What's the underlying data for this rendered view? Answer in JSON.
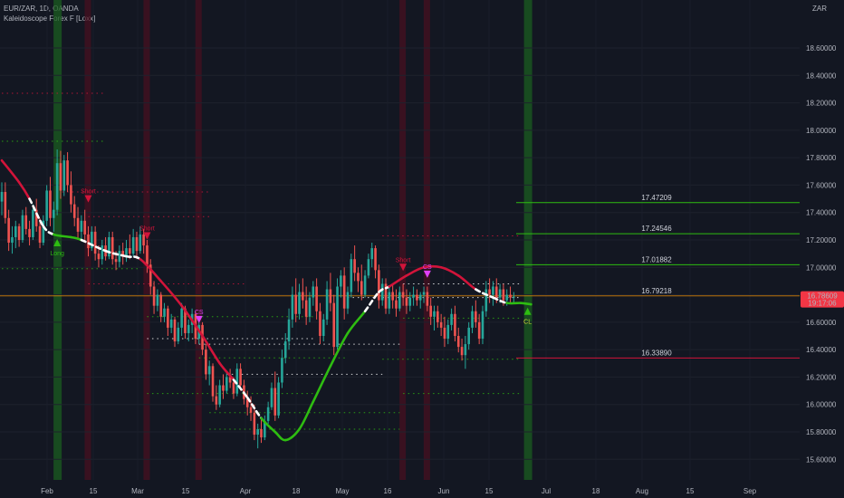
{
  "header": {
    "symbol_line": "EUR/ZAR, 1D, OANDA",
    "indicator_line": "Kaleidoscope Forex F [Loxx]"
  },
  "axis": {
    "currency": "ZAR"
  },
  "price_badge": {
    "price": "16.78609",
    "countdown": "19:17:06",
    "color": "#f23645"
  },
  "colors": {
    "background": "#131722",
    "up_candle": "#26a69a",
    "down_candle": "#ef5350",
    "trend_up": "#2ebd11",
    "trend_down": "#d2143a",
    "trend_neutral": "#ffffff",
    "long_band": "#1b5e20",
    "short_band": "#4a1020",
    "level_green": "#2ebd11",
    "level_red": "#d2143a",
    "level_orange": "#ff9800"
  },
  "chart_data": {
    "type": "candlestick",
    "title": "EUR/ZAR, 1D, OANDA",
    "indicator": "Kaleidoscope Forex F [Loxx]",
    "ylabel": "ZAR",
    "ylim": [
      15.45,
      18.95
    ],
    "y_ticks": [
      "18.60000",
      "18.40000",
      "18.20000",
      "18.00000",
      "17.80000",
      "17.60000",
      "17.40000",
      "17.20000",
      "17.00000",
      "16.80000",
      "16.60000",
      "16.40000",
      "16.20000",
      "16.00000",
      "15.80000",
      "15.60000"
    ],
    "x_ticks": [
      "Feb",
      "15",
      "Mar",
      "15",
      "Apr",
      "18",
      "May",
      "16",
      "Jun",
      "15",
      "Jul",
      "18",
      "Aug",
      "15",
      "Sep"
    ],
    "levels": [
      {
        "value": 17.47209,
        "label": "17.47209",
        "color": "green"
      },
      {
        "value": 17.24546,
        "label": "17.24546",
        "color": "green"
      },
      {
        "value": 17.01882,
        "label": "17.01882",
        "color": "green"
      },
      {
        "value": 16.79218,
        "label": "16.79218",
        "color": "orange"
      },
      {
        "value": 16.3389,
        "label": "16.33890",
        "color": "red"
      }
    ],
    "signals": [
      {
        "label": "Long",
        "type": "long",
        "bar": 16,
        "price": 17.18
      },
      {
        "label": "Short",
        "type": "short",
        "bar": 25,
        "price": 17.5
      },
      {
        "label": "Short",
        "type": "short",
        "bar": 42,
        "price": 17.23
      },
      {
        "label": "CS",
        "type": "cs",
        "bar": 57,
        "price": 16.62
      },
      {
        "label": "Short",
        "type": "short",
        "bar": 116,
        "price": 17.0
      },
      {
        "label": "CS",
        "type": "cs",
        "bar": 123,
        "price": 16.95
      },
      {
        "label": "CL",
        "type": "cl",
        "bar": 152,
        "price": 16.68
      }
    ],
    "candles": [
      {
        "o": 17.48,
        "h": 17.62,
        "l": 17.38,
        "c": 17.55
      },
      {
        "o": 17.55,
        "h": 17.62,
        "l": 17.32,
        "c": 17.36
      },
      {
        "o": 17.36,
        "h": 17.42,
        "l": 17.12,
        "c": 17.18
      },
      {
        "o": 17.18,
        "h": 17.3,
        "l": 17.1,
        "c": 17.22
      },
      {
        "o": 17.22,
        "h": 17.34,
        "l": 17.14,
        "c": 17.3
      },
      {
        "o": 17.3,
        "h": 17.32,
        "l": 17.15,
        "c": 17.2
      },
      {
        "o": 17.2,
        "h": 17.42,
        "l": 17.18,
        "c": 17.38
      },
      {
        "o": 17.38,
        "h": 17.44,
        "l": 17.24,
        "c": 17.28
      },
      {
        "o": 17.28,
        "h": 17.34,
        "l": 17.16,
        "c": 17.22
      },
      {
        "o": 17.22,
        "h": 17.46,
        "l": 17.2,
        "c": 17.42
      },
      {
        "o": 17.42,
        "h": 17.5,
        "l": 17.26,
        "c": 17.3
      },
      {
        "o": 17.3,
        "h": 17.36,
        "l": 17.14,
        "c": 17.18
      },
      {
        "o": 17.18,
        "h": 17.38,
        "l": 17.16,
        "c": 17.34
      },
      {
        "o": 17.34,
        "h": 17.6,
        "l": 17.3,
        "c": 17.56
      },
      {
        "o": 17.56,
        "h": 17.66,
        "l": 17.3,
        "c": 17.36
      },
      {
        "o": 17.36,
        "h": 17.48,
        "l": 17.26,
        "c": 17.42
      },
      {
        "o": 17.42,
        "h": 17.86,
        "l": 17.38,
        "c": 17.76
      },
      {
        "o": 17.76,
        "h": 17.85,
        "l": 17.5,
        "c": 17.56
      },
      {
        "o": 17.56,
        "h": 17.82,
        "l": 17.52,
        "c": 17.78
      },
      {
        "o": 17.78,
        "h": 17.84,
        "l": 17.55,
        "c": 17.6
      },
      {
        "o": 17.6,
        "h": 17.7,
        "l": 17.4,
        "c": 17.46
      },
      {
        "o": 17.46,
        "h": 17.52,
        "l": 17.3,
        "c": 17.36
      },
      {
        "o": 17.36,
        "h": 17.44,
        "l": 17.2,
        "c": 17.26
      },
      {
        "o": 17.26,
        "h": 17.38,
        "l": 17.2,
        "c": 17.34
      },
      {
        "o": 17.34,
        "h": 17.42,
        "l": 17.18,
        "c": 17.24
      },
      {
        "o": 17.24,
        "h": 17.3,
        "l": 17.08,
        "c": 17.14
      },
      {
        "o": 17.14,
        "h": 17.3,
        "l": 17.12,
        "c": 17.26
      },
      {
        "o": 17.26,
        "h": 17.3,
        "l": 17.05,
        "c": 17.1
      },
      {
        "o": 17.1,
        "h": 17.16,
        "l": 17.0,
        "c": 17.06
      },
      {
        "o": 17.06,
        "h": 17.2,
        "l": 17.02,
        "c": 17.16
      },
      {
        "o": 17.16,
        "h": 17.22,
        "l": 17.05,
        "c": 17.08
      },
      {
        "o": 17.08,
        "h": 17.26,
        "l": 17.06,
        "c": 17.22
      },
      {
        "o": 17.22,
        "h": 17.26,
        "l": 17.02,
        "c": 17.06
      },
      {
        "o": 17.06,
        "h": 17.12,
        "l": 16.98,
        "c": 17.04
      },
      {
        "o": 17.04,
        "h": 17.16,
        "l": 17.0,
        "c": 17.12
      },
      {
        "o": 17.12,
        "h": 17.18,
        "l": 17.02,
        "c": 17.08
      },
      {
        "o": 17.08,
        "h": 17.2,
        "l": 17.04,
        "c": 17.14
      },
      {
        "o": 17.14,
        "h": 17.24,
        "l": 17.06,
        "c": 17.1
      },
      {
        "o": 17.1,
        "h": 17.28,
        "l": 17.08,
        "c": 17.22
      },
      {
        "o": 17.22,
        "h": 17.26,
        "l": 17.06,
        "c": 17.12
      },
      {
        "o": 17.12,
        "h": 17.3,
        "l": 17.1,
        "c": 17.24
      },
      {
        "o": 17.24,
        "h": 17.28,
        "l": 17.1,
        "c": 17.16
      },
      {
        "o": 17.16,
        "h": 17.2,
        "l": 16.96,
        "c": 17.02
      },
      {
        "o": 17.02,
        "h": 17.06,
        "l": 16.8,
        "c": 16.86
      },
      {
        "o": 16.86,
        "h": 16.9,
        "l": 16.66,
        "c": 16.72
      },
      {
        "o": 16.72,
        "h": 16.84,
        "l": 16.68,
        "c": 16.8
      },
      {
        "o": 16.8,
        "h": 16.82,
        "l": 16.6,
        "c": 16.64
      },
      {
        "o": 16.64,
        "h": 16.74,
        "l": 16.6,
        "c": 16.7
      },
      {
        "o": 16.7,
        "h": 16.72,
        "l": 16.5,
        "c": 16.56
      },
      {
        "o": 16.56,
        "h": 16.66,
        "l": 16.52,
        "c": 16.62
      },
      {
        "o": 16.62,
        "h": 16.64,
        "l": 16.42,
        "c": 16.46
      },
      {
        "o": 16.46,
        "h": 16.6,
        "l": 16.44,
        "c": 16.56
      },
      {
        "o": 16.56,
        "h": 16.74,
        "l": 16.5,
        "c": 16.7
      },
      {
        "o": 16.7,
        "h": 16.72,
        "l": 16.48,
        "c": 16.52
      },
      {
        "o": 16.52,
        "h": 16.62,
        "l": 16.46,
        "c": 16.58
      },
      {
        "o": 16.58,
        "h": 16.7,
        "l": 16.52,
        "c": 16.66
      },
      {
        "o": 16.66,
        "h": 16.68,
        "l": 16.44,
        "c": 16.48
      },
      {
        "o": 16.48,
        "h": 16.62,
        "l": 16.44,
        "c": 16.58
      },
      {
        "o": 16.58,
        "h": 16.6,
        "l": 16.36,
        "c": 16.4
      },
      {
        "o": 16.4,
        "h": 16.44,
        "l": 16.18,
        "c": 16.22
      },
      {
        "o": 16.22,
        "h": 16.32,
        "l": 16.14,
        "c": 16.28
      },
      {
        "o": 16.28,
        "h": 16.3,
        "l": 16.02,
        "c": 16.06
      },
      {
        "o": 16.06,
        "h": 16.14,
        "l": 15.96,
        "c": 16.0
      },
      {
        "o": 16.0,
        "h": 16.18,
        "l": 15.98,
        "c": 16.14
      },
      {
        "o": 16.14,
        "h": 16.22,
        "l": 16.04,
        "c": 16.1
      },
      {
        "o": 16.1,
        "h": 16.24,
        "l": 16.08,
        "c": 16.2
      },
      {
        "o": 16.2,
        "h": 16.26,
        "l": 16.12,
        "c": 16.16
      },
      {
        "o": 16.16,
        "h": 16.2,
        "l": 16.04,
        "c": 16.08
      },
      {
        "o": 16.08,
        "h": 16.3,
        "l": 16.06,
        "c": 16.26
      },
      {
        "o": 16.26,
        "h": 16.3,
        "l": 16.1,
        "c": 16.14
      },
      {
        "o": 16.14,
        "h": 16.18,
        "l": 16.0,
        "c": 16.04
      },
      {
        "o": 16.04,
        "h": 16.1,
        "l": 15.92,
        "c": 15.98
      },
      {
        "o": 15.98,
        "h": 16.06,
        "l": 15.88,
        "c": 15.94
      },
      {
        "o": 15.94,
        "h": 16.0,
        "l": 15.74,
        "c": 15.78
      },
      {
        "o": 15.78,
        "h": 15.86,
        "l": 15.68,
        "c": 15.82
      },
      {
        "o": 15.82,
        "h": 15.9,
        "l": 15.72,
        "c": 15.76
      },
      {
        "o": 15.76,
        "h": 15.92,
        "l": 15.74,
        "c": 15.88
      },
      {
        "o": 15.88,
        "h": 16.02,
        "l": 15.86,
        "c": 15.98
      },
      {
        "o": 15.98,
        "h": 16.16,
        "l": 15.96,
        "c": 16.12
      },
      {
        "o": 16.12,
        "h": 16.24,
        "l": 15.88,
        "c": 15.92
      },
      {
        "o": 15.92,
        "h": 16.2,
        "l": 15.9,
        "c": 16.16
      },
      {
        "o": 16.16,
        "h": 16.4,
        "l": 16.12,
        "c": 16.34
      },
      {
        "o": 16.34,
        "h": 16.52,
        "l": 16.3,
        "c": 16.46
      },
      {
        "o": 16.46,
        "h": 16.7,
        "l": 16.4,
        "c": 16.62
      },
      {
        "o": 16.62,
        "h": 16.86,
        "l": 16.56,
        "c": 16.8
      },
      {
        "o": 16.8,
        "h": 16.92,
        "l": 16.6,
        "c": 16.66
      },
      {
        "o": 16.66,
        "h": 16.88,
        "l": 16.62,
        "c": 16.82
      },
      {
        "o": 16.82,
        "h": 16.92,
        "l": 16.7,
        "c": 16.76
      },
      {
        "o": 16.76,
        "h": 16.86,
        "l": 16.58,
        "c": 16.64
      },
      {
        "o": 16.64,
        "h": 16.82,
        "l": 16.6,
        "c": 16.78
      },
      {
        "o": 16.78,
        "h": 16.9,
        "l": 16.72,
        "c": 16.86
      },
      {
        "o": 16.86,
        "h": 16.92,
        "l": 16.62,
        "c": 16.68
      },
      {
        "o": 16.68,
        "h": 16.74,
        "l": 16.44,
        "c": 16.5
      },
      {
        "o": 16.5,
        "h": 16.66,
        "l": 16.46,
        "c": 16.62
      },
      {
        "o": 16.62,
        "h": 16.9,
        "l": 16.58,
        "c": 16.84
      },
      {
        "o": 16.84,
        "h": 16.96,
        "l": 16.68,
        "c": 16.74
      },
      {
        "o": 16.74,
        "h": 16.8,
        "l": 16.36,
        "c": 16.42
      },
      {
        "o": 16.42,
        "h": 16.92,
        "l": 16.4,
        "c": 16.86
      },
      {
        "o": 16.86,
        "h": 16.98,
        "l": 16.78,
        "c": 16.94
      },
      {
        "o": 16.94,
        "h": 17.0,
        "l": 16.62,
        "c": 16.7
      },
      {
        "o": 16.7,
        "h": 16.86,
        "l": 16.66,
        "c": 16.82
      },
      {
        "o": 16.82,
        "h": 17.1,
        "l": 16.78,
        "c": 17.06
      },
      {
        "o": 17.06,
        "h": 17.16,
        "l": 16.9,
        "c": 16.96
      },
      {
        "o": 16.96,
        "h": 17.0,
        "l": 16.82,
        "c": 16.9
      },
      {
        "o": 16.9,
        "h": 17.02,
        "l": 16.76,
        "c": 16.8
      },
      {
        "o": 16.8,
        "h": 16.98,
        "l": 16.78,
        "c": 16.94
      },
      {
        "o": 16.94,
        "h": 17.1,
        "l": 16.92,
        "c": 17.06
      },
      {
        "o": 17.06,
        "h": 17.18,
        "l": 17.0,
        "c": 17.14
      },
      {
        "o": 17.14,
        "h": 17.16,
        "l": 16.92,
        "c": 16.98
      },
      {
        "o": 16.98,
        "h": 17.02,
        "l": 16.7,
        "c": 16.76
      },
      {
        "o": 16.76,
        "h": 16.92,
        "l": 16.72,
        "c": 16.88
      },
      {
        "o": 16.88,
        "h": 16.92,
        "l": 16.66,
        "c": 16.7
      },
      {
        "o": 16.7,
        "h": 16.86,
        "l": 16.66,
        "c": 16.82
      },
      {
        "o": 16.82,
        "h": 16.88,
        "l": 16.7,
        "c": 16.76
      },
      {
        "o": 16.76,
        "h": 16.84,
        "l": 16.64,
        "c": 16.7
      },
      {
        "o": 16.7,
        "h": 16.86,
        "l": 16.68,
        "c": 16.82
      },
      {
        "o": 16.82,
        "h": 16.88,
        "l": 16.72,
        "c": 16.78
      },
      {
        "o": 16.78,
        "h": 16.84,
        "l": 16.66,
        "c": 16.72
      },
      {
        "o": 16.72,
        "h": 16.82,
        "l": 16.68,
        "c": 16.78
      },
      {
        "o": 16.78,
        "h": 16.86,
        "l": 16.72,
        "c": 16.8
      },
      {
        "o": 16.8,
        "h": 16.84,
        "l": 16.72,
        "c": 16.76
      },
      {
        "o": 16.76,
        "h": 16.82,
        "l": 16.7,
        "c": 16.8
      },
      {
        "o": 16.8,
        "h": 16.86,
        "l": 16.74,
        "c": 16.82
      },
      {
        "o": 16.82,
        "h": 16.86,
        "l": 16.68,
        "c": 16.72
      },
      {
        "o": 16.72,
        "h": 16.78,
        "l": 16.58,
        "c": 16.64
      },
      {
        "o": 16.64,
        "h": 16.72,
        "l": 16.54,
        "c": 16.68
      },
      {
        "o": 16.68,
        "h": 16.72,
        "l": 16.56,
        "c": 16.6
      },
      {
        "o": 16.6,
        "h": 16.66,
        "l": 16.5,
        "c": 16.56
      },
      {
        "o": 16.56,
        "h": 16.64,
        "l": 16.42,
        "c": 16.48
      },
      {
        "o": 16.48,
        "h": 16.62,
        "l": 16.44,
        "c": 16.58
      },
      {
        "o": 16.58,
        "h": 16.7,
        "l": 16.54,
        "c": 16.66
      },
      {
        "o": 16.66,
        "h": 16.72,
        "l": 16.46,
        "c": 16.5
      },
      {
        "o": 16.5,
        "h": 16.56,
        "l": 16.38,
        "c": 16.42
      },
      {
        "o": 16.42,
        "h": 16.48,
        "l": 16.32,
        "c": 16.36
      },
      {
        "o": 16.36,
        "h": 16.5,
        "l": 16.26,
        "c": 16.44
      },
      {
        "o": 16.44,
        "h": 16.6,
        "l": 16.4,
        "c": 16.56
      },
      {
        "o": 16.56,
        "h": 16.72,
        "l": 16.52,
        "c": 16.68
      },
      {
        "o": 16.68,
        "h": 16.76,
        "l": 16.56,
        "c": 16.6
      },
      {
        "o": 16.6,
        "h": 16.66,
        "l": 16.44,
        "c": 16.48
      },
      {
        "o": 16.48,
        "h": 16.72,
        "l": 16.44,
        "c": 16.68
      },
      {
        "o": 16.68,
        "h": 16.9,
        "l": 16.64,
        "c": 16.84
      },
      {
        "o": 16.84,
        "h": 16.92,
        "l": 16.74,
        "c": 16.8
      },
      {
        "o": 16.8,
        "h": 16.9,
        "l": 16.72,
        "c": 16.86
      },
      {
        "o": 16.86,
        "h": 16.92,
        "l": 16.74,
        "c": 16.78
      },
      {
        "o": 16.78,
        "h": 16.88,
        "l": 16.74,
        "c": 16.84
      },
      {
        "o": 16.84,
        "h": 16.88,
        "l": 16.72,
        "c": 16.76
      },
      {
        "o": 16.76,
        "h": 16.84,
        "l": 16.72,
        "c": 16.8
      },
      {
        "o": 16.8,
        "h": 16.86,
        "l": 16.74,
        "c": 16.78
      },
      {
        "o": 16.78,
        "h": 16.82,
        "l": 16.74,
        "c": 16.786
      }
    ],
    "trend": [
      {
        "bar": 0,
        "v": 17.78,
        "s": "down"
      },
      {
        "bar": 5,
        "v": 17.62,
        "s": "down"
      },
      {
        "bar": 8,
        "v": 17.5,
        "s": "neutral"
      },
      {
        "bar": 12,
        "v": 17.3,
        "s": "neutral"
      },
      {
        "bar": 15,
        "v": 17.24,
        "s": "up"
      },
      {
        "bar": 20,
        "v": 17.22,
        "s": "up"
      },
      {
        "bar": 23,
        "v": 17.2,
        "s": "neutral"
      },
      {
        "bar": 30,
        "v": 17.12,
        "s": "neutral"
      },
      {
        "bar": 36,
        "v": 17.08,
        "s": "neutral"
      },
      {
        "bar": 40,
        "v": 17.06,
        "s": "down"
      },
      {
        "bar": 46,
        "v": 16.9,
        "s": "down"
      },
      {
        "bar": 52,
        "v": 16.72,
        "s": "down"
      },
      {
        "bar": 58,
        "v": 16.5,
        "s": "down"
      },
      {
        "bar": 63,
        "v": 16.3,
        "s": "down"
      },
      {
        "bar": 67,
        "v": 16.18,
        "s": "neutral"
      },
      {
        "bar": 71,
        "v": 16.05,
        "s": "neutral"
      },
      {
        "bar": 75,
        "v": 15.9,
        "s": "up"
      },
      {
        "bar": 79,
        "v": 15.8,
        "s": "up"
      },
      {
        "bar": 82,
        "v": 15.74,
        "s": "up"
      },
      {
        "bar": 86,
        "v": 15.82,
        "s": "up"
      },
      {
        "bar": 90,
        "v": 16.02,
        "s": "up"
      },
      {
        "bar": 95,
        "v": 16.28,
        "s": "up"
      },
      {
        "bar": 100,
        "v": 16.52,
        "s": "up"
      },
      {
        "bar": 105,
        "v": 16.68,
        "s": "neutral"
      },
      {
        "bar": 109,
        "v": 16.82,
        "s": "neutral"
      },
      {
        "bar": 112,
        "v": 16.86,
        "s": "down"
      },
      {
        "bar": 117,
        "v": 16.94,
        "s": "down"
      },
      {
        "bar": 122,
        "v": 17.0,
        "s": "down"
      },
      {
        "bar": 127,
        "v": 17.0,
        "s": "down"
      },
      {
        "bar": 132,
        "v": 16.94,
        "s": "down"
      },
      {
        "bar": 137,
        "v": 16.84,
        "s": "neutral"
      },
      {
        "bar": 142,
        "v": 16.78,
        "s": "neutral"
      },
      {
        "bar": 146,
        "v": 16.74,
        "s": "up"
      },
      {
        "bar": 150,
        "v": 16.74,
        "s": "up"
      },
      {
        "bar": 153,
        "v": 16.73,
        "s": "up"
      }
    ]
  }
}
